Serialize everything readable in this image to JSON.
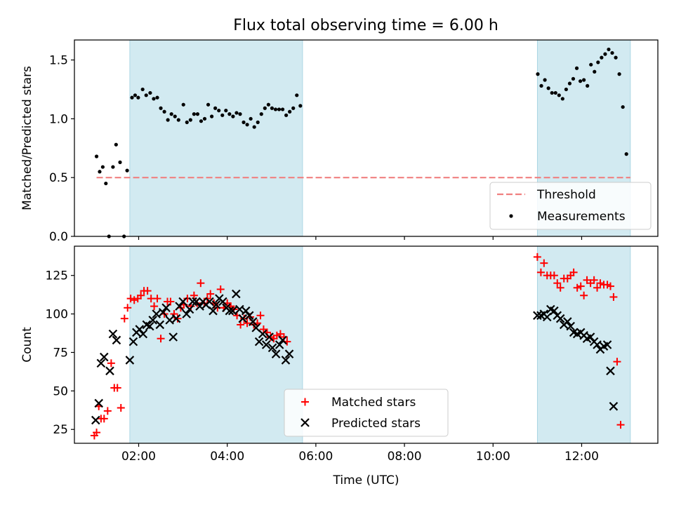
{
  "title": "Flux total observing time = 6.00 h",
  "chart_data": [
    {
      "type": "scatter",
      "ylabel": "Matched/Predicted stars",
      "ylim": [
        0,
        1.67
      ],
      "xlim": [
        0.55,
        13.72
      ],
      "yticks": [
        0.0,
        0.5,
        1.0,
        1.5
      ],
      "ytick_labels": [
        "0.0",
        "0.5",
        "1.0",
        "1.5"
      ],
      "shaded_intervals": [
        [
          1.8,
          5.7
        ],
        [
          11.0,
          13.1
        ]
      ],
      "shade_color": "#add8e6",
      "threshold": {
        "name": "Threshold",
        "value": 0.5,
        "x_range": [
          1.05,
          13.1
        ],
        "color": "#f08080"
      },
      "legend_position": "lower right",
      "series": [
        {
          "name": "Measurements",
          "color": "#000000",
          "points": [
            [
              1.05,
              0.68
            ],
            [
              1.12,
              0.55
            ],
            [
              1.19,
              0.59
            ],
            [
              1.26,
              0.45
            ],
            [
              1.33,
              0.0
            ],
            [
              1.42,
              0.59
            ],
            [
              1.49,
              0.78
            ],
            [
              1.58,
              0.63
            ],
            [
              1.67,
              0.0
            ],
            [
              1.74,
              0.56
            ],
            [
              1.85,
              1.18
            ],
            [
              1.92,
              1.2
            ],
            [
              1.99,
              1.18
            ],
            [
              2.09,
              1.25
            ],
            [
              2.17,
              1.2
            ],
            [
              2.26,
              1.22
            ],
            [
              2.34,
              1.17
            ],
            [
              2.42,
              1.18
            ],
            [
              2.5,
              1.09
            ],
            [
              2.58,
              1.06
            ],
            [
              2.66,
              0.99
            ],
            [
              2.74,
              1.04
            ],
            [
              2.82,
              1.02
            ],
            [
              2.9,
              0.99
            ],
            [
              3.01,
              1.12
            ],
            [
              3.09,
              0.97
            ],
            [
              3.17,
              0.99
            ],
            [
              3.25,
              1.04
            ],
            [
              3.33,
              1.04
            ],
            [
              3.41,
              0.98
            ],
            [
              3.49,
              1.0
            ],
            [
              3.57,
              1.12
            ],
            [
              3.65,
              1.02
            ],
            [
              3.73,
              1.09
            ],
            [
              3.81,
              1.07
            ],
            [
              3.89,
              1.03
            ],
            [
              3.97,
              1.07
            ],
            [
              4.05,
              1.04
            ],
            [
              4.13,
              1.02
            ],
            [
              4.21,
              1.05
            ],
            [
              4.29,
              1.04
            ],
            [
              4.37,
              0.97
            ],
            [
              4.45,
              0.95
            ],
            [
              4.53,
              1.0
            ],
            [
              4.61,
              0.93
            ],
            [
              4.69,
              0.97
            ],
            [
              4.77,
              1.04
            ],
            [
              4.85,
              1.09
            ],
            [
              4.93,
              1.12
            ],
            [
              5.01,
              1.09
            ],
            [
              5.09,
              1.08
            ],
            [
              5.17,
              1.08
            ],
            [
              5.25,
              1.08
            ],
            [
              5.33,
              1.03
            ],
            [
              5.41,
              1.06
            ],
            [
              5.49,
              1.09
            ],
            [
              5.57,
              1.2
            ],
            [
              5.65,
              1.11
            ],
            [
              11.01,
              1.38
            ],
            [
              11.09,
              1.28
            ],
            [
              11.17,
              1.33
            ],
            [
              11.25,
              1.26
            ],
            [
              11.33,
              1.22
            ],
            [
              11.41,
              1.22
            ],
            [
              11.49,
              1.2
            ],
            [
              11.57,
              1.17
            ],
            [
              11.65,
              1.25
            ],
            [
              11.73,
              1.3
            ],
            [
              11.81,
              1.34
            ],
            [
              11.89,
              1.43
            ],
            [
              11.97,
              1.32
            ],
            [
              12.05,
              1.33
            ],
            [
              12.13,
              1.28
            ],
            [
              12.21,
              1.46
            ],
            [
              12.29,
              1.4
            ],
            [
              12.37,
              1.48
            ],
            [
              12.45,
              1.52
            ],
            [
              12.53,
              1.55
            ],
            [
              12.61,
              1.59
            ],
            [
              12.69,
              1.56
            ],
            [
              12.77,
              1.52
            ],
            [
              12.85,
              1.38
            ],
            [
              12.93,
              1.1
            ],
            [
              13.01,
              0.7
            ]
          ]
        }
      ]
    },
    {
      "type": "scatter",
      "xlabel": "Time (UTC)",
      "ylabel": "Count",
      "ylim": [
        16,
        144
      ],
      "xlim": [
        0.55,
        13.72
      ],
      "yticks": [
        25,
        50,
        75,
        100,
        125
      ],
      "ytick_labels": [
        "25",
        "50",
        "75",
        "100",
        "125"
      ],
      "xticks": [
        2,
        4,
        6,
        8,
        10,
        12
      ],
      "xtick_labels": [
        "02:00",
        "04:00",
        "06:00",
        "08:00",
        "10:00",
        "12:00"
      ],
      "shaded_intervals": [
        [
          1.8,
          5.7
        ],
        [
          11.0,
          13.1
        ]
      ],
      "shade_color": "#add8e6",
      "legend_position": "lower center",
      "series": [
        {
          "name": "Matched stars",
          "marker": "plus",
          "color": "#ff0000",
          "points": [
            [
              1.0,
              21
            ],
            [
              1.05,
              23
            ],
            [
              1.1,
              40
            ],
            [
              1.15,
              32
            ],
            [
              1.22,
              32
            ],
            [
              1.3,
              37
            ],
            [
              1.38,
              68
            ],
            [
              1.45,
              52
            ],
            [
              1.52,
              52
            ],
            [
              1.6,
              39
            ],
            [
              1.68,
              97
            ],
            [
              1.75,
              104
            ],
            [
              1.82,
              110
            ],
            [
              1.9,
              109
            ],
            [
              1.98,
              110
            ],
            [
              2.05,
              112
            ],
            [
              2.12,
              115
            ],
            [
              2.2,
              115
            ],
            [
              2.28,
              110
            ],
            [
              2.35,
              105
            ],
            [
              2.42,
              110
            ],
            [
              2.5,
              84
            ],
            [
              2.58,
              100
            ],
            [
              2.65,
              108
            ],
            [
              2.72,
              108
            ],
            [
              2.8,
              100
            ],
            [
              2.88,
              97
            ],
            [
              2.95,
              104
            ],
            [
              3.02,
              106
            ],
            [
              3.1,
              110
            ],
            [
              3.18,
              105
            ],
            [
              3.25,
              112
            ],
            [
              3.32,
              107
            ],
            [
              3.4,
              120
            ],
            [
              3.48,
              107
            ],
            [
              3.55,
              110
            ],
            [
              3.62,
              113
            ],
            [
              3.7,
              107
            ],
            [
              3.78,
              104
            ],
            [
              3.85,
              116
            ],
            [
              3.92,
              104
            ],
            [
              4.0,
              107
            ],
            [
              4.08,
              105
            ],
            [
              4.15,
              103
            ],
            [
              4.22,
              99
            ],
            [
              4.3,
              93
            ],
            [
              4.38,
              97
            ],
            [
              4.45,
              94
            ],
            [
              4.52,
              98
            ],
            [
              4.6,
              93
            ],
            [
              4.68,
              94
            ],
            [
              4.75,
              99
            ],
            [
              4.82,
              90
            ],
            [
              4.9,
              88
            ],
            [
              4.98,
              85
            ],
            [
              5.05,
              84
            ],
            [
              5.12,
              86
            ],
            [
              5.2,
              87
            ],
            [
              5.28,
              85
            ],
            [
              5.35,
              82
            ],
            [
              11.0,
              137
            ],
            [
              11.08,
              127
            ],
            [
              11.15,
              133
            ],
            [
              11.22,
              125
            ],
            [
              11.3,
              125
            ],
            [
              11.38,
              125
            ],
            [
              11.45,
              120
            ],
            [
              11.52,
              117
            ],
            [
              11.6,
              123
            ],
            [
              11.68,
              123
            ],
            [
              11.75,
              125
            ],
            [
              11.82,
              127
            ],
            [
              11.9,
              117
            ],
            [
              11.98,
              118
            ],
            [
              12.05,
              112
            ],
            [
              12.12,
              122
            ],
            [
              12.2,
              120
            ],
            [
              12.28,
              122
            ],
            [
              12.35,
              117
            ],
            [
              12.42,
              120
            ],
            [
              12.5,
              119
            ],
            [
              12.58,
              119
            ],
            [
              12.65,
              118
            ],
            [
              12.72,
              111
            ],
            [
              12.8,
              69
            ],
            [
              12.88,
              28
            ]
          ]
        },
        {
          "name": "Predicted stars",
          "marker": "x",
          "color": "#000000",
          "points": [
            [
              1.03,
              31
            ],
            [
              1.1,
              42
            ],
            [
              1.15,
              68
            ],
            [
              1.22,
              72
            ],
            [
              1.35,
              63
            ],
            [
              1.42,
              87
            ],
            [
              1.5,
              83
            ],
            [
              1.8,
              70
            ],
            [
              1.88,
              82
            ],
            [
              1.95,
              88
            ],
            [
              2.02,
              90
            ],
            [
              2.1,
              87
            ],
            [
              2.18,
              93
            ],
            [
              2.25,
              92
            ],
            [
              2.32,
              96
            ],
            [
              2.4,
              100
            ],
            [
              2.48,
              93
            ],
            [
              2.55,
              101
            ],
            [
              2.62,
              104
            ],
            [
              2.7,
              96
            ],
            [
              2.78,
              85
            ],
            [
              2.85,
              97
            ],
            [
              2.92,
              105
            ],
            [
              3.0,
              108
            ],
            [
              3.08,
              100
            ],
            [
              3.15,
              103
            ],
            [
              3.22,
              108
            ],
            [
              3.3,
              108
            ],
            [
              3.38,
              105
            ],
            [
              3.45,
              108
            ],
            [
              3.52,
              106
            ],
            [
              3.6,
              108
            ],
            [
              3.68,
              102
            ],
            [
              3.75,
              106
            ],
            [
              3.82,
              110
            ],
            [
              3.9,
              108
            ],
            [
              3.98,
              104
            ],
            [
              4.05,
              102
            ],
            [
              4.12,
              102
            ],
            [
              4.2,
              113
            ],
            [
              4.28,
              103
            ],
            [
              4.35,
              97
            ],
            [
              4.42,
              102
            ],
            [
              4.5,
              99
            ],
            [
              4.58,
              95
            ],
            [
              4.65,
              91
            ],
            [
              4.72,
              82
            ],
            [
              4.8,
              87
            ],
            [
              4.88,
              80
            ],
            [
              4.95,
              85
            ],
            [
              5.02,
              78
            ],
            [
              5.1,
              74
            ],
            [
              5.18,
              80
            ],
            [
              5.25,
              83
            ],
            [
              5.32,
              70
            ],
            [
              5.4,
              74
            ],
            [
              11.0,
              99
            ],
            [
              11.08,
              99
            ],
            [
              11.15,
              100
            ],
            [
              11.22,
              98
            ],
            [
              11.3,
              103
            ],
            [
              11.38,
              102
            ],
            [
              11.45,
              99
            ],
            [
              11.52,
              97
            ],
            [
              11.6,
              93
            ],
            [
              11.68,
              95
            ],
            [
              11.75,
              92
            ],
            [
              11.82,
              88
            ],
            [
              11.9,
              87
            ],
            [
              11.98,
              88
            ],
            [
              12.05,
              86
            ],
            [
              12.12,
              84
            ],
            [
              12.2,
              85
            ],
            [
              12.28,
              82
            ],
            [
              12.35,
              80
            ],
            [
              12.42,
              77
            ],
            [
              12.5,
              79
            ],
            [
              12.58,
              80
            ],
            [
              12.65,
              63
            ],
            [
              12.72,
              40
            ]
          ]
        }
      ]
    }
  ]
}
